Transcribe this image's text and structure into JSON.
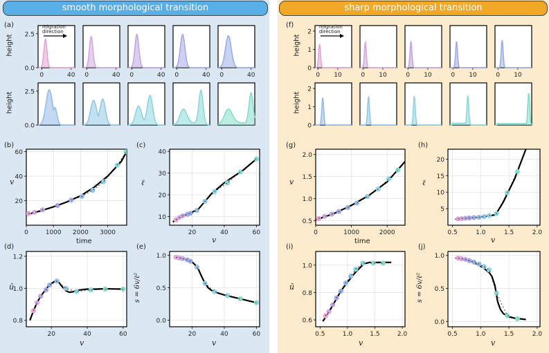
{
  "left": {
    "title": "smooth morphological transition",
    "bg": "#dbe8f4",
    "header_color": "#5aaee6"
  },
  "right": {
    "title": "sharp morphological transition",
    "bg": "#fcebcc",
    "header_color": "#f0a826"
  },
  "labels": {
    "a": "(a)",
    "b": "(b)",
    "c": "(c)",
    "d": "(d)",
    "e": "(e)",
    "f": "(f)",
    "g": "(g)",
    "h": "(h)",
    "i": "(i)",
    "j": "(j)",
    "height": "height",
    "migration_line1": "migration",
    "migration_line2": "direction",
    "time": "time",
    "v": "v",
    "ell": "ℓ",
    "ubar": "ū",
    "s_formula": "s = 6v/ℓ²"
  },
  "palette": [
    "#e8a2d4",
    "#d4a8e0",
    "#c0a6e2",
    "#a8a8e6",
    "#9aaee8",
    "#96bce8",
    "#92c8e6",
    "#8ed4e2",
    "#8ad8d8",
    "#86dccc"
  ],
  "chart_data": [
    {
      "id": "a",
      "type": "area",
      "x_ticks": [
        0,
        40
      ],
      "y_ticks": [
        0,
        2.5
      ],
      "xlim": [
        -5,
        45
      ],
      "ylim": [
        0,
        3.1
      ],
      "ylabel": "height",
      "profiles": [
        {
          "center": 5,
          "width": 2.6,
          "height": 2.1
        },
        {
          "center": 6,
          "width": 3.0,
          "height": 2.3
        },
        {
          "center": 7,
          "width": 3.4,
          "height": 2.45
        },
        {
          "center": 8,
          "width": 4.0,
          "height": 2.45
        },
        {
          "center": 9,
          "width": 5.0,
          "height": 2.35
        },
        {
          "center": 10,
          "width": 5.5,
          "height": 2.5,
          "bump": [
            18,
            4,
            1.2
          ]
        },
        {
          "center": 9,
          "width": 5.0,
          "height": 1.7,
          "bump": [
            22,
            5,
            1.8
          ]
        },
        {
          "center": 9,
          "width": 5.0,
          "height": 1.3,
          "bump": [
            25,
            5,
            2.1
          ]
        },
        {
          "center": 9,
          "width": 6.0,
          "height": 1.1,
          "bump": [
            33,
            4,
            2.5
          ]
        },
        {
          "center": 9,
          "width": 7.0,
          "height": 1.1,
          "bump": [
            40,
            4,
            2.3
          ]
        }
      ]
    },
    {
      "id": "b",
      "type": "line",
      "xlabel": "time",
      "ylabel": "v",
      "x_ticks": [
        0,
        1000,
        2000,
        3000
      ],
      "y_ticks": [
        20,
        40,
        60
      ],
      "xlim": [
        0,
        3700
      ],
      "ylim": [
        0,
        62
      ],
      "x": [
        0,
        500,
        1000,
        1500,
        2000,
        2500,
        3000,
        3500,
        3700
      ],
      "y": [
        8.5,
        11.5,
        15,
        19,
        24,
        31,
        40,
        52,
        60
      ],
      "points_x": [
        80,
        300,
        600,
        1150,
        1650,
        2050,
        2450,
        2850,
        3350,
        3680
      ],
      "points_y": [
        9.5,
        10.5,
        12.5,
        16,
        20.5,
        23.5,
        28.5,
        35.5,
        49,
        60
      ]
    },
    {
      "id": "c",
      "type": "line",
      "xlabel": "v",
      "ylabel": "ℓ",
      "x_ticks": [
        20,
        40,
        60
      ],
      "y_ticks": [
        10,
        20,
        30,
        40
      ],
      "xlim": [
        6,
        62
      ],
      "ylim": [
        6,
        41
      ],
      "x": [
        8,
        12,
        16,
        20,
        24,
        28,
        32,
        36,
        40,
        44,
        48,
        52,
        56,
        60
      ],
      "y": [
        7.5,
        9.5,
        10.8,
        12,
        13.5,
        17,
        20.5,
        23,
        25.5,
        27.5,
        29.5,
        31.5,
        34,
        36.5
      ],
      "points_x": [
        10,
        12,
        14,
        17,
        19,
        23,
        28,
        34,
        42,
        50,
        60
      ],
      "points_y": [
        8.5,
        9.5,
        10.3,
        11,
        11.5,
        12.8,
        17,
        21.5,
        25.5,
        30.5,
        36.5
      ]
    },
    {
      "id": "d",
      "type": "line",
      "xlabel": "v",
      "ylabel": "ū",
      "x_ticks": [
        20,
        40,
        60
      ],
      "y_ticks": [
        0.8,
        1.0,
        1.2
      ],
      "xlim": [
        6,
        62
      ],
      "ylim": [
        0.76,
        1.23
      ],
      "x": [
        8,
        10,
        12,
        14,
        16,
        18,
        20,
        22,
        24,
        26,
        28,
        30,
        32,
        34,
        36,
        40,
        45,
        50,
        55,
        60
      ],
      "y": [
        0.8,
        0.86,
        0.91,
        0.95,
        0.98,
        1.01,
        1.03,
        1.045,
        1.04,
        1.01,
        0.985,
        0.975,
        0.978,
        0.985,
        0.99,
        0.995,
        0.995,
        0.997,
        0.996,
        0.995
      ],
      "points_x": [
        10,
        12,
        14,
        17,
        19,
        23,
        28,
        34,
        42,
        50,
        60
      ],
      "points_y": [
        0.86,
        0.91,
        0.95,
        0.99,
        1.02,
        1.045,
        1.0,
        0.98,
        0.99,
        0.995,
        0.995
      ]
    },
    {
      "id": "e",
      "type": "line",
      "xlabel": "v",
      "ylabel": "s = 6v/ℓ²",
      "x_ticks": [
        20,
        40,
        60
      ],
      "y_ticks": [
        0.0,
        0.5,
        1.0
      ],
      "xlim": [
        6,
        62
      ],
      "ylim": [
        -0.1,
        1.06
      ],
      "x": [
        10,
        14,
        18,
        20,
        22,
        24,
        26,
        28,
        30,
        32,
        36,
        40,
        45,
        50,
        55,
        60
      ],
      "y": [
        0.97,
        0.95,
        0.92,
        0.9,
        0.85,
        0.78,
        0.67,
        0.57,
        0.5,
        0.46,
        0.42,
        0.39,
        0.36,
        0.33,
        0.3,
        0.27
      ],
      "points_x": [
        10,
        12,
        14,
        17,
        19,
        23,
        28,
        34,
        42,
        50,
        60
      ],
      "points_y": [
        0.97,
        0.96,
        0.95,
        0.93,
        0.91,
        0.82,
        0.57,
        0.44,
        0.38,
        0.33,
        0.27
      ]
    },
    {
      "id": "f",
      "type": "area",
      "x_ticks": [
        0,
        10
      ],
      "y_ticks": [
        0,
        1,
        2
      ],
      "xlim": [
        -1.5,
        17
      ],
      "ylim": [
        0,
        2.3
      ],
      "ylabel": "height",
      "profiles": [
        {
          "center": 0.8,
          "width": 0.6,
          "height": 1.3
        },
        {
          "center": 1.2,
          "width": 0.6,
          "height": 1.4
        },
        {
          "center": 1.5,
          "width": 0.6,
          "height": 1.45
        },
        {
          "center": 1.8,
          "width": 0.6,
          "height": 1.45
        },
        {
          "center": 2.1,
          "width": 0.6,
          "height": 1.5
        },
        {
          "center": 2.4,
          "width": 0.6,
          "height": 1.5
        },
        {
          "center": 2.8,
          "width": 0.6,
          "height": 1.55
        },
        {
          "center": 3.2,
          "width": 0.6,
          "height": 1.6
        },
        {
          "center": 7.5,
          "width": 0.6,
          "height": 1.6,
          "foot": 0.1
        },
        {
          "center": 15.5,
          "width": 0.6,
          "height": 1.75,
          "foot": 0.08
        }
      ]
    },
    {
      "id": "g",
      "type": "line",
      "xlabel": "time",
      "ylabel": "v",
      "x_ticks": [
        0,
        1000,
        2000
      ],
      "y_ticks": [
        0.5,
        1.0,
        1.5,
        2.0
      ],
      "xlim": [
        0,
        2500
      ],
      "ylim": [
        0.4,
        2.12
      ],
      "x": [
        0,
        500,
        1000,
        1500,
        2000,
        2500
      ],
      "y": [
        0.52,
        0.66,
        0.85,
        1.08,
        1.38,
        1.84
      ],
      "points_x": [
        80,
        250,
        450,
        650,
        900,
        1150,
        1450,
        1750,
        2050,
        2300
      ],
      "points_y": [
        0.55,
        0.6,
        0.65,
        0.71,
        0.8,
        0.9,
        1.05,
        1.22,
        1.45,
        1.65
      ]
    },
    {
      "id": "h",
      "type": "line",
      "xlabel": "v",
      "ylabel": "ℓ",
      "x_ticks": [
        0.5,
        1.0,
        1.5,
        2.0
      ],
      "y_ticks": [
        5,
        10,
        15,
        20
      ],
      "xlim": [
        0.42,
        2.05
      ],
      "ylim": [
        0,
        23
      ],
      "x": [
        0.55,
        0.7,
        0.9,
        1.1,
        1.25,
        1.3,
        1.4,
        1.5,
        1.6,
        1.7,
        1.8
      ],
      "y": [
        1.8,
        2.0,
        2.3,
        2.7,
        3.1,
        4.2,
        7,
        10.5,
        14,
        18.5,
        23
      ],
      "points_x": [
        0.6,
        0.66,
        0.73,
        0.8,
        0.88,
        0.97,
        1.06,
        1.15,
        1.28,
        1.47,
        1.65
      ],
      "points_y": [
        1.9,
        2.0,
        2.1,
        2.2,
        2.3,
        2.4,
        2.6,
        2.9,
        3.5,
        9.8,
        16.2
      ]
    },
    {
      "id": "i",
      "type": "line",
      "xlabel": "v",
      "ylabel": "ū",
      "x_ticks": [
        0.5,
        1.0,
        1.5,
        2.0
      ],
      "y_ticks": [
        0.6,
        0.8,
        1.0
      ],
      "xlim": [
        0.42,
        2.05
      ],
      "ylim": [
        0.55,
        1.1
      ],
      "x": [
        0.55,
        0.65,
        0.75,
        0.85,
        0.95,
        1.05,
        1.15,
        1.25,
        1.3,
        1.4,
        1.6,
        1.8
      ],
      "y": [
        0.59,
        0.65,
        0.72,
        0.79,
        0.85,
        0.9,
        0.95,
        0.99,
        1.01,
        1.02,
        1.02,
        1.02
      ],
      "points_x": [
        0.6,
        0.66,
        0.73,
        0.8,
        0.88,
        0.97,
        1.06,
        1.15,
        1.28,
        1.47,
        1.65
      ],
      "points_y": [
        0.63,
        0.66,
        0.71,
        0.76,
        0.81,
        0.87,
        0.92,
        0.97,
        1.015,
        1.015,
        1.015
      ]
    },
    {
      "id": "j",
      "type": "line",
      "xlabel": "v",
      "ylabel": "s = 6v/ℓ²",
      "x_ticks": [
        0.5,
        1.0,
        1.5,
        2.0
      ],
      "y_ticks": [
        0.0,
        0.5,
        1.0
      ],
      "xlim": [
        0.42,
        2.05
      ],
      "ylim": [
        -0.08,
        1.06
      ],
      "x": [
        0.55,
        0.65,
        0.75,
        0.85,
        0.95,
        1.05,
        1.15,
        1.2,
        1.25,
        1.28,
        1.3,
        1.35,
        1.4,
        1.5,
        1.6,
        1.8
      ],
      "y": [
        0.96,
        0.95,
        0.93,
        0.9,
        0.86,
        0.81,
        0.74,
        0.68,
        0.55,
        0.4,
        0.3,
        0.18,
        0.12,
        0.07,
        0.05,
        0.03
      ],
      "points_x": [
        0.6,
        0.66,
        0.73,
        0.8,
        0.88,
        0.97,
        1.06,
        1.15,
        1.28,
        1.47,
        1.65
      ],
      "points_y": [
        0.96,
        0.95,
        0.94,
        0.92,
        0.9,
        0.87,
        0.83,
        0.78,
        0.43,
        0.09,
        0.04
      ]
    }
  ]
}
